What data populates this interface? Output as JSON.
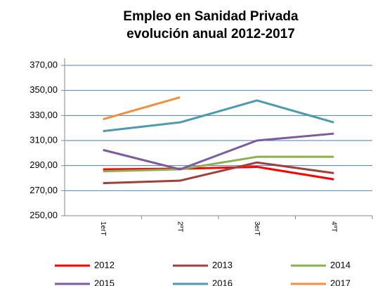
{
  "chart_data": {
    "type": "line",
    "title": "Empleo en Sanidad Privada",
    "subtitle": "evolución anual 2012-2017",
    "categories": [
      "1erT",
      "2ºT",
      "3erT",
      "4ºT"
    ],
    "series": [
      {
        "name": "2012",
        "color": "#ff0000",
        "values": [
          287,
          287.5,
          289,
          279
        ]
      },
      {
        "name": "2013",
        "color": "#a0403c",
        "values": [
          276,
          278,
          292.5,
          284
        ]
      },
      {
        "name": "2014",
        "color": "#8cb050",
        "values": [
          285.5,
          287,
          297,
          297
        ]
      },
      {
        "name": "2015",
        "color": "#7b5aa0",
        "values": [
          302.5,
          287,
          310,
          315.5
        ]
      },
      {
        "name": "2016",
        "color": "#4a9ab0",
        "values": [
          317.5,
          324.5,
          342,
          324.5
        ]
      },
      {
        "name": "2017",
        "color": "#f0903c",
        "values": [
          327,
          344.5,
          null,
          null
        ]
      }
    ],
    "ylim": [
      250,
      370
    ],
    "yticks": [
      {
        "value": 250,
        "label": "250,00"
      },
      {
        "value": 270,
        "label": "270,00"
      },
      {
        "value": 290,
        "label": "290,00"
      },
      {
        "value": 310,
        "label": "310,00"
      },
      {
        "value": 330,
        "label": "330,00"
      },
      {
        "value": 350,
        "label": "350,00"
      },
      {
        "value": 370,
        "label": "370,00"
      }
    ],
    "grid": true,
    "legend": "bottom"
  }
}
